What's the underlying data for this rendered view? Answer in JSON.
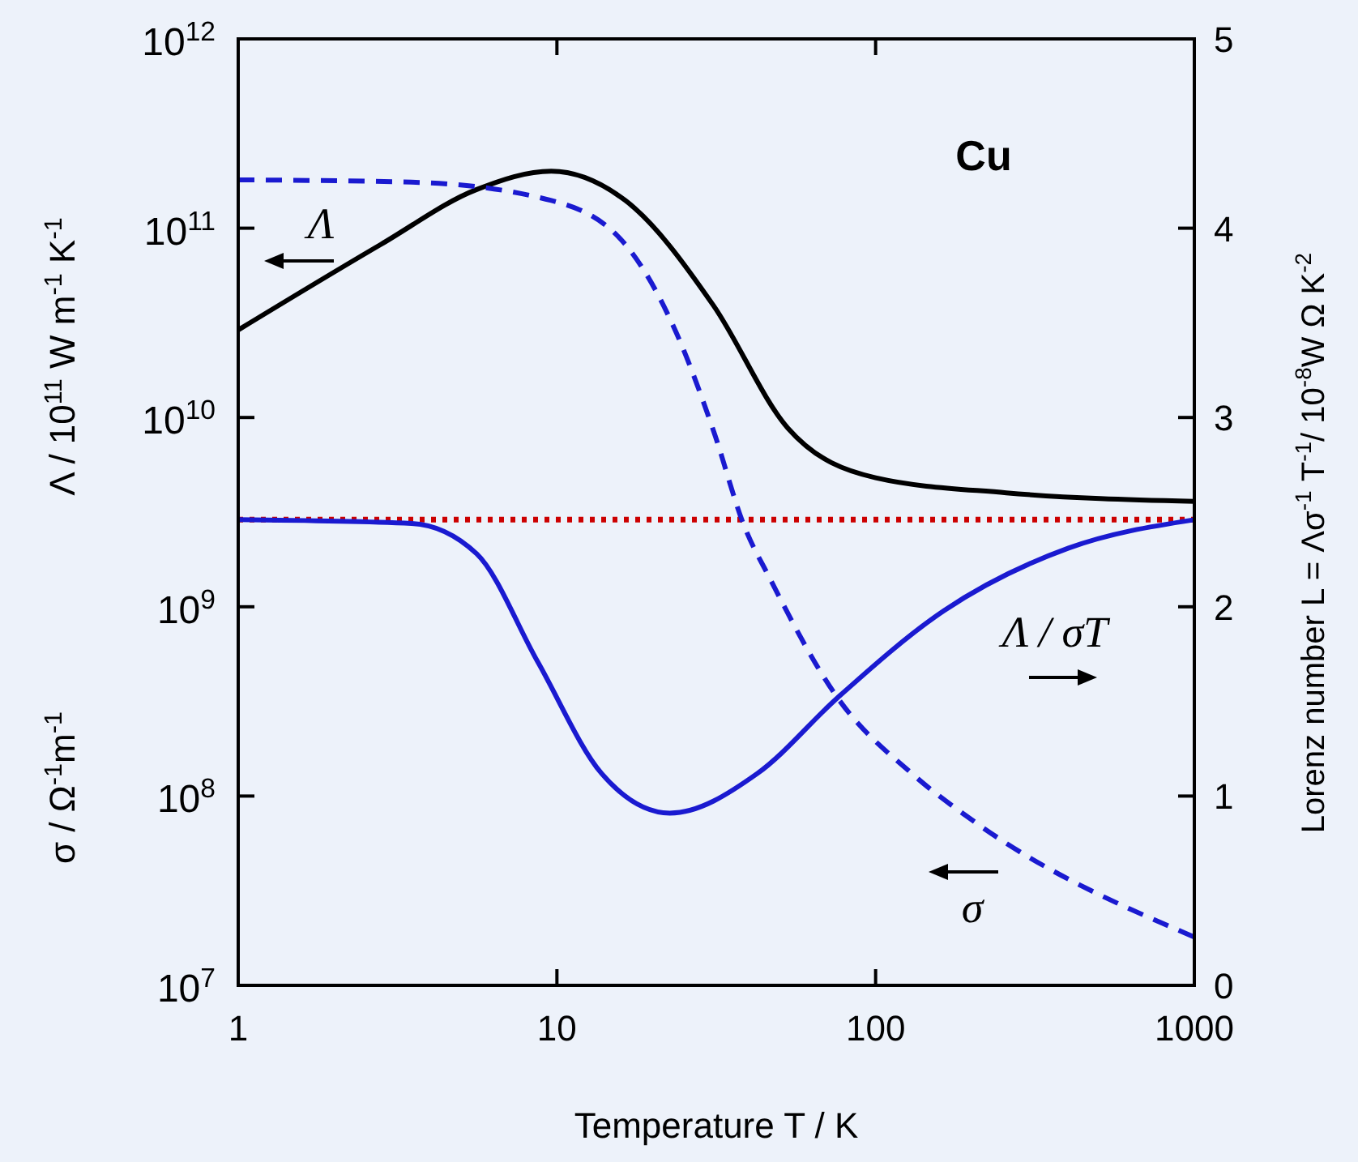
{
  "chart_data": {
    "type": "line",
    "xlabel": "Temperature  T / K",
    "ylabel": "Λ / 10$^{11}$ W m$^{-1}$ K$^{-1}$",
    "y2label": "Lorenz number  L = Λσ$^{-1}$ T$^{-1}$/ 10$^{-8}$W Ω K$^{-2}$",
    "log": "xy",
    "xlim": [
      1,
      1000
    ],
    "xticks": [
      1,
      10,
      100,
      1000
    ],
    "ylim": [
      10000000.0,
      1000000000000.0
    ],
    "yticks": [
      {
        "value": 10000000.0,
        "label": "10$^{7}$"
      },
      {
        "value": 100000000.0,
        "label": "10$^{8}$"
      },
      {
        "value": 1000000000.0,
        "label": "10$^{9}$"
      },
      {
        "value": 10000000000.0,
        "label": "10$^{10}$"
      },
      {
        "value": 100000000000.0,
        "label": "10$^{11}$"
      },
      {
        "value": 1000000000000.0,
        "label": "10$^{12}$"
      }
    ],
    "y2lim": [
      0,
      5
    ],
    "y2ticks": [
      0,
      1,
      2,
      3,
      4,
      5
    ],
    "grid": false,
    "marker": "none",
    "series": [
      {
        "color": "#000000",
        "line_style": "solid",
        "x": [
          1,
          2.8,
          5.6,
          9.6,
          16.4,
          31,
          53,
          100,
          257,
          1000
        ],
        "values": [
          29000000000.0,
          82000000000.0,
          160000000000.0,
          200000000000.0,
          140000000000.0,
          39000000000.0,
          8800000000.0,
          4800000000.0,
          4000000000.0,
          3600000000.0
        ]
      },
      {
        "color": "#1a1ad0",
        "line_style": "dashed",
        "x": [
          1,
          3.5,
          9.6,
          16.4,
          23.7,
          31,
          38.6,
          46.7,
          76,
          131,
          207,
          1000
        ],
        "values": [
          180000000000.0,
          175000000000.0,
          140000000000.0,
          82000000000.0,
          28000000000.0,
          8500000000.0,
          2700000000.0,
          1400000000.0,
          330000000.0,
          130000000.0,
          72000000.0,
          18000000.0
        ]
      },
      {
        "color": "#1a1ad0",
        "line_style": "solid",
        "axis": "y2",
        "x": [
          1,
          3.5,
          5.6,
          8.7,
          13.8,
          22.6,
          42.6,
          76,
          164,
          403,
          1000
        ],
        "values": [
          2.46,
          2.44,
          2.28,
          1.71,
          1.12,
          0.91,
          1.12,
          1.52,
          1.98,
          2.31,
          2.46
        ]
      }
    ],
    "ref_lines": [
      {
        "axis": "y2",
        "value": 2.46,
        "color": "#cc0000",
        "line_style": "dotted"
      }
    ],
    "annotations": [
      "Cu",
      "σ / Ω$^{-1}$m$^{-1}$",
      "Λ",
      "σ",
      "Λ / σT"
    ]
  }
}
